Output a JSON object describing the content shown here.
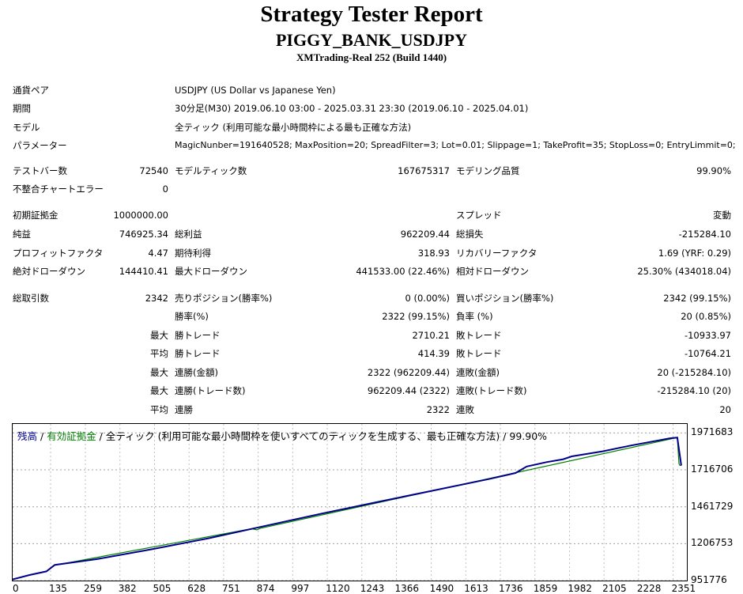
{
  "report": {
    "title": "Strategy Tester Report",
    "ea_name": "PIGGY_BANK_USDJPY",
    "server": "XMTrading-Real 252 (Build 1440)"
  },
  "info": {
    "pair_label": "通貨ペア",
    "pair": "USDJPY (US Dollar vs Japanese Yen)",
    "period_label": "期間",
    "period": "30分足(M30) 2019.06.10 03:00 - 2025.03.31 23:30 (2019.06.10 - 2025.04.01)",
    "model_label": "モデル",
    "model": "全ティック (利用可能な最小時間枠による最も正確な方法)",
    "params_label": "パラメーター",
    "params": "MagicNunber=191640528; MaxPosition=20; SpreadFilter=3; Lot=0.01; Slippage=1; TakeProfit=35; StopLoss=0; EntryLimmit=0;"
  },
  "stats": {
    "bars_label": "テストバー数",
    "bars": "72540",
    "ticks_label": "モデルティック数",
    "ticks": "167675317",
    "quality_label": "モデリング品質",
    "quality": "99.90%",
    "mismatch_label": "不整合チャートエラー",
    "mismatch": "0",
    "deposit_label": "初期証拠金",
    "deposit": "1000000.00",
    "spread_label": "スプレッド",
    "spread": "変動",
    "net_label": "純益",
    "net": "746925.34",
    "gross_profit_label": "総利益",
    "gross_profit": "962209.44",
    "gross_loss_label": "総損失",
    "gross_loss": "-215284.10",
    "pf_label": "プロフィットファクタ",
    "pf": "4.47",
    "expected_label": "期待利得",
    "expected": "318.93",
    "recovery_label": "リカバリーファクタ",
    "recovery": "1.69 (YRF: 0.29)",
    "abs_dd_label": "絶対ドローダウン",
    "abs_dd": "144410.41",
    "max_dd_label": "最大ドローダウン",
    "max_dd": "441533.00 (22.46%)",
    "rel_dd_label": "相対ドローダウン",
    "rel_dd": "25.30% (434018.04)",
    "trades_label": "総取引数",
    "trades": "2342",
    "short_label": "売りポジション(勝率%)",
    "short": "0 (0.00%)",
    "long_label": "買いポジション(勝率%)",
    "long": "2342 (99.15%)",
    "win_rate_label": "勝率(%)",
    "win_rate": "2322 (99.15%)",
    "loss_rate_label": "負率 (%)",
    "loss_rate": "20 (0.85%)",
    "max_word": "最大",
    "avg_word": "平均",
    "win_trade_label": "勝トレード",
    "loss_trade_label": "敗トレード",
    "max_win_trade": "2710.21",
    "max_loss_trade": "-10933.97",
    "avg_win_trade": "414.39",
    "avg_loss_trade": "-10764.21",
    "consec_win_amt_label": "連勝(金額)",
    "consec_win_amt": "2322 (962209.44)",
    "consec_loss_amt_label": "連敗(金額)",
    "consec_loss_amt": "20 (-215284.10)",
    "consec_win_cnt_label": "連勝(トレード数)",
    "consec_win_cnt": "962209.44 (2322)",
    "consec_loss_cnt_label": "連敗(トレード数)",
    "consec_loss_cnt": "-215284.10 (20)",
    "consec_win_label": "連勝",
    "consec_win": "2322",
    "consec_loss_label": "連敗",
    "consec_loss": "20"
  },
  "chart_legend": {
    "balance": "残高",
    "sep1": " / ",
    "equity": "有効証拠金",
    "rest": " / 全ティック (利用可能な最小時間枠を使いすべてのティックを生成する、最も正確な方法) / 99.90%"
  },
  "chart_data": {
    "type": "line",
    "xlabel": "",
    "ylabel": "",
    "xlim": [
      0,
      2400
    ],
    "ylim": [
      951776,
      2034000
    ],
    "y_ticks": [
      951776,
      1206753,
      1461729,
      1716706,
      1971683
    ],
    "x_ticks": [
      0,
      135,
      259,
      382,
      505,
      628,
      751,
      874,
      997,
      1120,
      1243,
      1366,
      1490,
      1613,
      1736,
      1859,
      1982,
      2105,
      2228,
      2351
    ],
    "grid": true,
    "series": [
      {
        "color": "#00008b",
        "x": [
          0,
          60,
          120,
          150,
          300,
          500,
          700,
          900,
          1100,
          1300,
          1500,
          1700,
          1790,
          1830,
          1900,
          1960,
          1990,
          2100,
          2200,
          2340,
          2366,
          2380
        ],
        "y": [
          960000,
          990000,
          1015000,
          1060000,
          1100000,
          1170000,
          1245000,
          1330000,
          1415000,
          1495000,
          1575000,
          1655000,
          1695000,
          1740000,
          1770000,
          1790000,
          1810000,
          1845000,
          1885000,
          1935000,
          1940000,
          1747000
        ]
      },
      {
        "color": "#008000",
        "x": [
          120,
          150,
          170,
          850,
          870,
          880,
          2366,
          2372,
          2375,
          2380
        ],
        "y": [
          1015000,
          1058000,
          1065000,
          1310000,
          1302000,
          1312000,
          1940000,
          1760000,
          1748000,
          1747000
        ]
      }
    ]
  }
}
